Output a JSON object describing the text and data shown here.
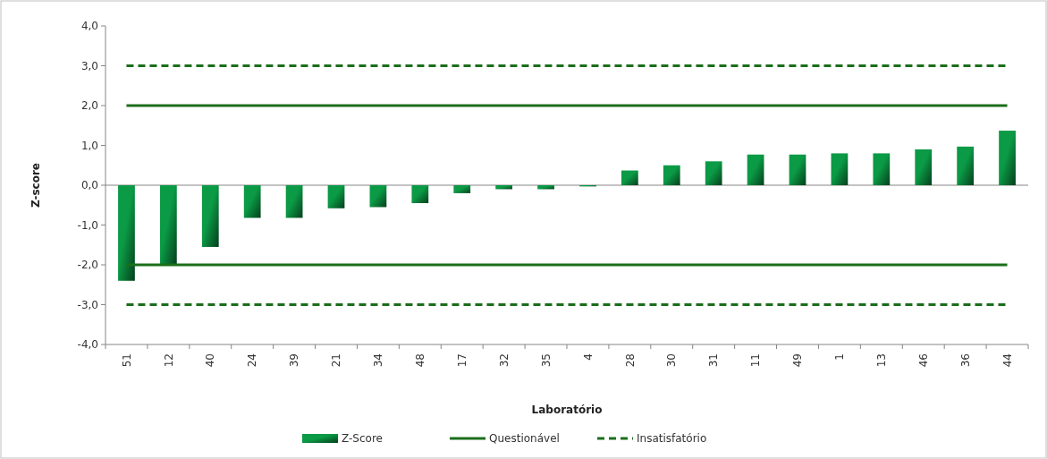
{
  "chart_data": {
    "type": "bar",
    "xlabel": "Laboratório",
    "ylabel": "Z-score",
    "categories": [
      "51",
      "12",
      "40",
      "24",
      "39",
      "21",
      "34",
      "48",
      "17",
      "32",
      "35",
      "4",
      "28",
      "30",
      "31",
      "11",
      "49",
      "1",
      "13",
      "46",
      "36",
      "44"
    ],
    "series": [
      {
        "name": "Z-Score",
        "color": "#0b9a45",
        "values": [
          -2.4,
          -2.0,
          -1.55,
          -0.82,
          -0.82,
          -0.58,
          -0.55,
          -0.45,
          -0.2,
          -0.1,
          -0.1,
          -0.03,
          0.37,
          0.5,
          0.6,
          0.77,
          0.77,
          0.8,
          0.8,
          0.9,
          0.97,
          1.37
        ]
      }
    ],
    "ylim": [
      -4,
      4
    ],
    "yticks": [
      {
        "value": -4,
        "label": "-4,0"
      },
      {
        "value": -3,
        "label": "-3,0"
      },
      {
        "value": -2,
        "label": "-2,0"
      },
      {
        "value": -1,
        "label": "-1,0"
      },
      {
        "value": 0,
        "label": "0,0"
      },
      {
        "value": 1,
        "label": "1,0"
      },
      {
        "value": 2,
        "label": "2,0"
      },
      {
        "value": 3,
        "label": "3,0"
      },
      {
        "value": 4,
        "label": "4,0"
      }
    ],
    "ref_lines": [
      {
        "axis": "y",
        "value": 2,
        "label": "Questionável",
        "color": "#1a6e1a",
        "line_style": "solid"
      },
      {
        "axis": "y",
        "value": -2,
        "color": "#1a6e1a",
        "line_style": "solid"
      },
      {
        "axis": "y",
        "value": 3,
        "label": "Insatisfatório",
        "color": "#1a6e1a",
        "line_style": "dashed"
      },
      {
        "axis": "y",
        "value": -3,
        "color": "#1a6e1a",
        "line_style": "dashed"
      }
    ],
    "grid": false,
    "legend": "bottom"
  }
}
